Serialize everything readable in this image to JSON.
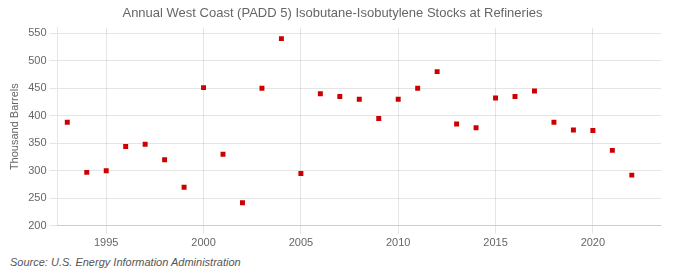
{
  "chart_data": {
    "type": "scatter",
    "title": "Annual West Coast (PADD 5) Isobutane-Isobutylene Stocks at Refineries",
    "ylabel": "Thousand Barrels",
    "source": "Source: U.S. Energy Information Administration",
    "x": [
      1993,
      1994,
      1995,
      1996,
      1997,
      1998,
      1999,
      2000,
      2001,
      2002,
      2003,
      2004,
      2005,
      2006,
      2007,
      2008,
      2009,
      2010,
      2011,
      2012,
      2013,
      2014,
      2015,
      2016,
      2017,
      2018,
      2019,
      2020,
      2021,
      2022
    ],
    "values": [
      388,
      297,
      300,
      344,
      348,
      320,
      270,
      451,
      330,
      242,
      450,
      540,
      295,
      440,
      435,
      430,
      395,
      430,
      450,
      480,
      385,
      378,
      432,
      435,
      445,
      388,
      374,
      373,
      337,
      292
    ],
    "color": "#cc0000",
    "marker": "square",
    "xlim": [
      1992.5,
      2023.5
    ],
    "xticks": [
      1995,
      2000,
      2005,
      2010,
      2015,
      2020
    ],
    "ylim": [
      200,
      560
    ],
    "yticks": [
      200,
      250,
      300,
      350,
      400,
      450,
      500,
      550
    ],
    "grid": true
  }
}
